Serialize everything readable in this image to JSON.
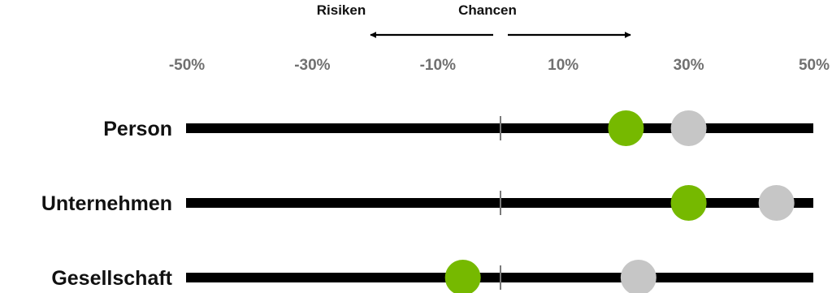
{
  "header": {
    "left_label": "Risiken",
    "right_label": "Chancen"
  },
  "colors": {
    "bar": "#000000",
    "zero_line": "#7a7a7a",
    "green_marker": "#76b900",
    "gray_marker": "#c6c6c6",
    "tick_label": "#707070"
  },
  "chart_data": {
    "type": "scatter",
    "orientation": "horizontal",
    "xlim": [
      -50,
      50
    ],
    "x_ticks": [
      -50,
      -30,
      -10,
      10,
      30,
      50
    ],
    "x_tick_labels": [
      "-50%",
      "-30%",
      "-10%",
      "10%",
      "30%",
      "50%"
    ],
    "categories": [
      "Person",
      "Unternehmen",
      "Gesellschaft"
    ],
    "series": [
      {
        "color": "#76b900",
        "values": [
          20,
          30,
          -6
        ]
      },
      {
        "color": "#c6c6c6",
        "values": [
          30,
          44,
          22
        ]
      }
    ]
  }
}
